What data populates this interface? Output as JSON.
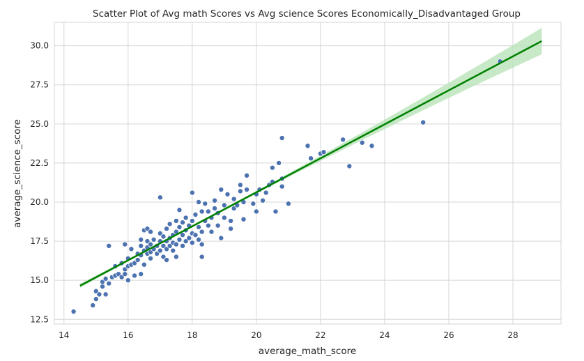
{
  "chart_data": {
    "type": "scatter",
    "title": "Scatter Plot of Avg math Scores vs  Avg science Scores  Economically_Disadvantaged Group",
    "xlabel": "average_math_score",
    "ylabel": "average_science_score",
    "xlim": [
      13.7,
      29.5
    ],
    "ylim": [
      12.2,
      31.5
    ],
    "xticks": [
      14,
      16,
      18,
      20,
      22,
      24,
      26,
      28
    ],
    "yticks": [
      12.5,
      15.0,
      17.5,
      20.0,
      22.5,
      25.0,
      27.5,
      30.0
    ],
    "grid": true,
    "colors": {
      "points": "#4c72b0",
      "point_edge": "#ffffff",
      "regression_line": "#008000",
      "confidence_band": "#b9e3b9",
      "grid": "#d6d6d6",
      "background": "#ffffff"
    },
    "regression": {
      "x_start": 14.5,
      "x_end": 28.9,
      "y_start": 14.65,
      "y_end": 30.3
    },
    "points": [
      [
        14.3,
        13.0
      ],
      [
        14.9,
        13.4
      ],
      [
        15.0,
        13.8
      ],
      [
        15.0,
        14.3
      ],
      [
        15.1,
        14.1
      ],
      [
        15.3,
        14.1
      ],
      [
        15.2,
        14.6
      ],
      [
        15.2,
        14.9
      ],
      [
        15.3,
        15.1
      ],
      [
        15.4,
        14.8
      ],
      [
        15.5,
        15.2
      ],
      [
        15.6,
        15.3
      ],
      [
        15.6,
        15.9
      ],
      [
        15.4,
        17.2
      ],
      [
        15.7,
        15.4
      ],
      [
        15.8,
        15.2
      ],
      [
        15.8,
        16.1
      ],
      [
        15.9,
        15.7
      ],
      [
        15.9,
        15.4
      ],
      [
        16.0,
        15.0
      ],
      [
        16.0,
        15.9
      ],
      [
        16.0,
        16.4
      ],
      [
        16.1,
        16.0
      ],
      [
        16.1,
        17.0
      ],
      [
        15.9,
        17.3
      ],
      [
        16.2,
        15.3
      ],
      [
        16.2,
        16.1
      ],
      [
        16.3,
        16.3
      ],
      [
        16.3,
        16.7
      ],
      [
        16.4,
        15.4
      ],
      [
        16.4,
        16.6
      ],
      [
        16.4,
        17.2
      ],
      [
        16.4,
        17.6
      ],
      [
        16.5,
        16.0
      ],
      [
        16.5,
        16.9
      ],
      [
        16.5,
        18.2
      ],
      [
        16.6,
        16.7
      ],
      [
        16.6,
        17.1
      ],
      [
        16.6,
        17.5
      ],
      [
        16.6,
        18.3
      ],
      [
        16.7,
        16.4
      ],
      [
        16.7,
        16.8
      ],
      [
        16.7,
        17.3
      ],
      [
        16.7,
        18.1
      ],
      [
        16.8,
        17.0
      ],
      [
        16.8,
        17.6
      ],
      [
        16.9,
        16.7
      ],
      [
        16.9,
        17.2
      ],
      [
        17.0,
        16.9
      ],
      [
        17.0,
        17.5
      ],
      [
        17.0,
        18.0
      ],
      [
        17.0,
        20.3
      ],
      [
        17.1,
        16.5
      ],
      [
        17.1,
        17.2
      ],
      [
        17.1,
        17.8
      ],
      [
        17.2,
        16.3
      ],
      [
        17.2,
        17.0
      ],
      [
        17.2,
        17.5
      ],
      [
        17.2,
        18.3
      ],
      [
        17.3,
        17.2
      ],
      [
        17.3,
        17.7
      ],
      [
        17.3,
        18.6
      ],
      [
        17.4,
        16.9
      ],
      [
        17.4,
        17.4
      ],
      [
        17.4,
        17.9
      ],
      [
        17.5,
        16.5
      ],
      [
        17.5,
        17.3
      ],
      [
        17.5,
        18.1
      ],
      [
        17.5,
        18.8
      ],
      [
        17.6,
        17.6
      ],
      [
        17.6,
        18.4
      ],
      [
        17.6,
        19.5
      ],
      [
        17.7,
        17.2
      ],
      [
        17.7,
        17.9
      ],
      [
        17.7,
        18.7
      ],
      [
        17.8,
        17.5
      ],
      [
        17.8,
        18.2
      ],
      [
        17.8,
        19.0
      ],
      [
        17.9,
        17.7
      ],
      [
        17.9,
        18.5
      ],
      [
        18.0,
        17.4
      ],
      [
        18.0,
        18.0
      ],
      [
        18.0,
        18.8
      ],
      [
        18.0,
        20.6
      ],
      [
        18.1,
        17.9
      ],
      [
        18.1,
        19.2
      ],
      [
        18.2,
        17.6
      ],
      [
        18.2,
        18.4
      ],
      [
        18.2,
        20.0
      ],
      [
        18.3,
        16.5
      ],
      [
        18.3,
        17.3
      ],
      [
        18.3,
        18.1
      ],
      [
        18.3,
        19.4
      ],
      [
        18.4,
        18.8
      ],
      [
        18.4,
        19.9
      ],
      [
        18.5,
        18.5
      ],
      [
        18.5,
        19.4
      ],
      [
        18.6,
        18.1
      ],
      [
        18.6,
        19.0
      ],
      [
        18.7,
        19.6
      ],
      [
        18.7,
        20.1
      ],
      [
        18.8,
        18.5
      ],
      [
        18.8,
        19.3
      ],
      [
        18.9,
        17.7
      ],
      [
        18.9,
        20.8
      ],
      [
        19.0,
        19.0
      ],
      [
        19.0,
        19.8
      ],
      [
        19.1,
        20.5
      ],
      [
        19.2,
        18.3
      ],
      [
        19.2,
        18.8
      ],
      [
        19.3,
        19.6
      ],
      [
        19.3,
        20.2
      ],
      [
        19.4,
        19.8
      ],
      [
        19.5,
        20.7
      ],
      [
        19.5,
        21.1
      ],
      [
        19.6,
        18.9
      ],
      [
        19.6,
        20.0
      ],
      [
        19.7,
        20.8
      ],
      [
        19.7,
        21.7
      ],
      [
        19.9,
        19.9
      ],
      [
        20.0,
        19.4
      ],
      [
        20.0,
        20.5
      ],
      [
        20.1,
        20.8
      ],
      [
        20.2,
        20.1
      ],
      [
        20.3,
        20.6
      ],
      [
        20.4,
        21.1
      ],
      [
        20.5,
        21.3
      ],
      [
        20.5,
        22.2
      ],
      [
        20.6,
        19.4
      ],
      [
        20.7,
        22.5
      ],
      [
        20.8,
        21.5
      ],
      [
        20.8,
        21.0
      ],
      [
        20.8,
        24.1
      ],
      [
        21.0,
        19.9
      ],
      [
        21.6,
        23.6
      ],
      [
        21.7,
        22.8
      ],
      [
        22.0,
        23.1
      ],
      [
        22.1,
        23.2
      ],
      [
        22.7,
        24.0
      ],
      [
        22.9,
        22.3
      ],
      [
        23.3,
        23.8
      ],
      [
        23.6,
        23.6
      ],
      [
        25.2,
        25.1
      ],
      [
        27.6,
        29.0
      ]
    ]
  }
}
